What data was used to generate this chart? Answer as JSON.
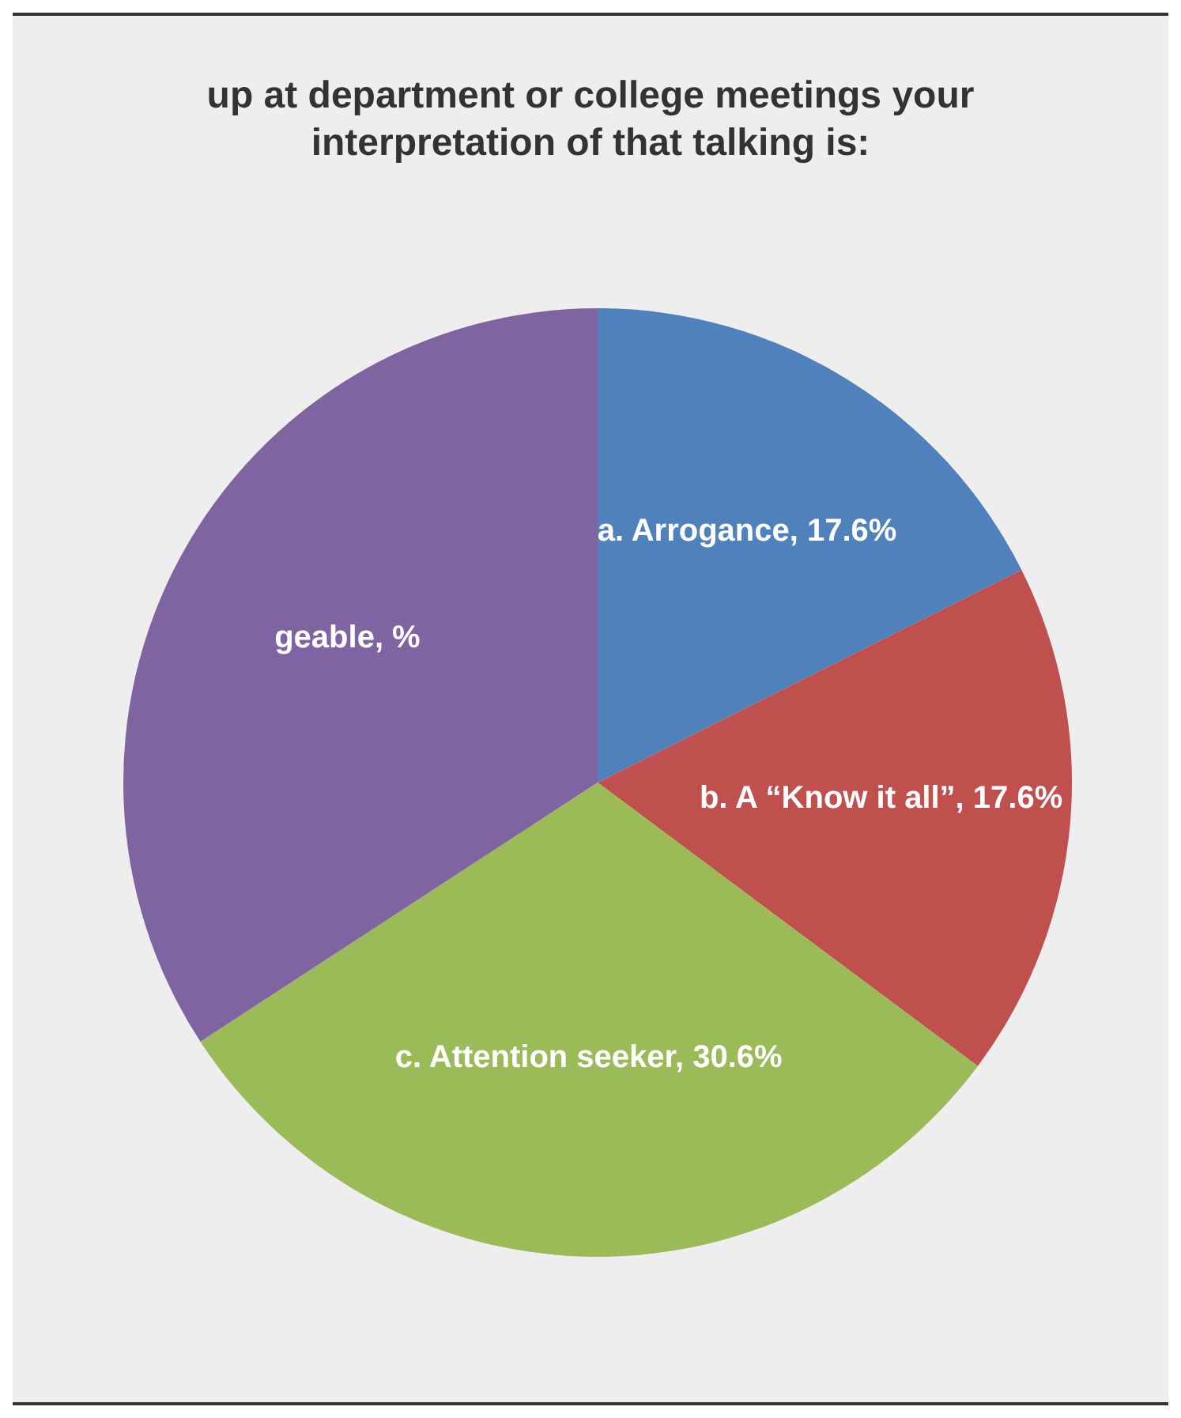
{
  "chart_data": {
    "type": "pie",
    "title": "up at department or college meetings your interpretation of that talking is:",
    "categories": [
      "a. Arrogance",
      "b. A “Know it all”",
      "c. Attention seeker",
      "geable"
    ],
    "values": [
      17.6,
      17.6,
      30.6,
      34.2
    ],
    "value_labels": [
      "17.6%",
      "17.6%",
      "30.6%",
      "%"
    ],
    "colors": [
      "#4f81bd",
      "#c0504d",
      "#9bbb59",
      "#8064a2"
    ],
    "legend": false
  }
}
